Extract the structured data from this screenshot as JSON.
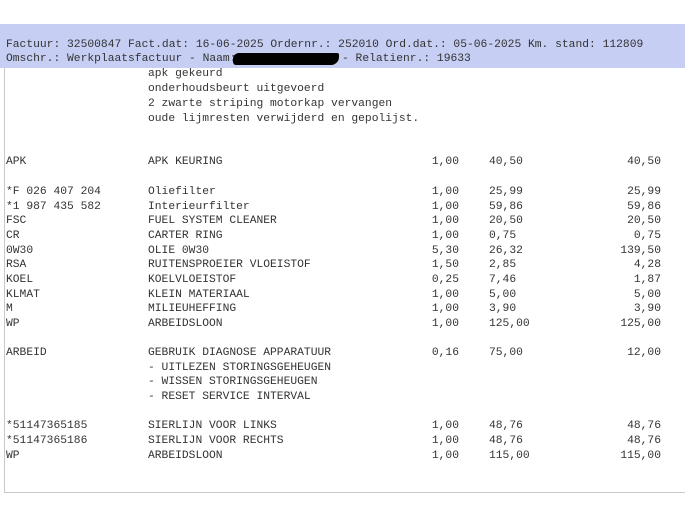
{
  "header": {
    "line1": "Factuur: 32500847 Fact.dat: 16-06-2025 Ordernr.: 252010 Ord.dat.: 05-06-2025 Km. stand: 112809",
    "line2_prefix": "Omschr.: Werkplaatsfactuur - Naam: Dhr.",
    "line2_suffix": "- Relatienr.: 19633"
  },
  "notes": [
    "apk gekeurd",
    "onderhoudsbeurt uitgevoerd",
    "2 zwarte striping motorkap vervangen",
    "oude lijmresten verwijderd en gepolijst."
  ],
  "items": [
    {
      "code": "APK",
      "desc": "APK KEURING",
      "qty": "1,00",
      "price": "40,50",
      "total": "40,50"
    },
    {
      "code": "*F 026 407 204",
      "desc": "Oliefilter",
      "qty": "1,00",
      "price": "25,99",
      "total": "25,99"
    },
    {
      "code": "*1 987 435 582",
      "desc": "Interieurfilter",
      "qty": "1,00",
      "price": "59,86",
      "total": "59,86"
    },
    {
      "code": "FSC",
      "desc": "FUEL SYSTEM CLEANER",
      "qty": "1,00",
      "price": "20,50",
      "total": "20,50"
    },
    {
      "code": "CR",
      "desc": "CARTER RING",
      "qty": "1,00",
      "price": "0,75",
      "total": "0,75"
    },
    {
      "code": "0W30",
      "desc": "OLIE 0W30",
      "qty": "5,30",
      "price": "26,32",
      "total": "139,50"
    },
    {
      "code": "RSA",
      "desc": "RUITENSPROEIER VLOEISTOF",
      "qty": "1,50",
      "price": "2,85",
      "total": "4,28"
    },
    {
      "code": "KOEL",
      "desc": "KOELVLOEISTOF",
      "qty": "0,25",
      "price": "7,46",
      "total": "1,87"
    },
    {
      "code": "KLMAT",
      "desc": "KLEIN MATERIAAL",
      "qty": "1,00",
      "price": "5,00",
      "total": "5,00"
    },
    {
      "code": "M",
      "desc": "MILIEUHEFFING",
      "qty": "1,00",
      "price": "3,90",
      "total": "3,90"
    },
    {
      "code": "WP",
      "desc": "ARBEIDSLOON",
      "qty": "1,00",
      "price": "125,00",
      "total": "125,00"
    },
    {
      "code": "ARBEID",
      "desc": "GEBRUIK DIAGNOSE APPARATUUR",
      "qty": "0,16",
      "price": "75,00",
      "total": "12,00"
    },
    {
      "code": "",
      "desc": "- UITLEZEN STORINGSGEHEUGEN",
      "qty": "",
      "price": "",
      "total": ""
    },
    {
      "code": "",
      "desc": "- WISSEN STORINGSGEHEUGEN",
      "qty": "",
      "price": "",
      "total": ""
    },
    {
      "code": "",
      "desc": "- RESET SERVICE INTERVAL",
      "qty": "",
      "price": "",
      "total": ""
    },
    {
      "code": "*51147365185",
      "desc": "SIERLIJN VOOR LINKS",
      "qty": "1,00",
      "price": "48,76",
      "total": "48,76"
    },
    {
      "code": "*51147365186",
      "desc": "SIERLIJN VOOR RECHTS",
      "qty": "1,00",
      "price": "48,76",
      "total": "48,76"
    },
    {
      "code": "WP",
      "desc": "ARBEIDSLOON",
      "qty": "1,00",
      "price": "115,00",
      "total": "115,00"
    }
  ]
}
